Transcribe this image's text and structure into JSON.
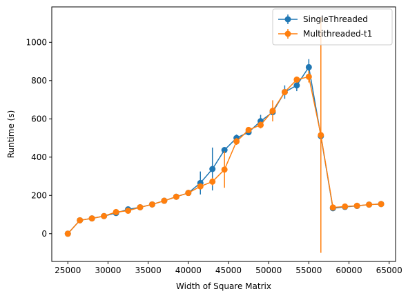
{
  "chart_data": {
    "type": "line",
    "title": "",
    "xlabel": "Width of Square Matrix",
    "ylabel": "Runtime (s)",
    "xlim": [
      23000,
      65800
    ],
    "ylim": [
      -145,
      1185
    ],
    "xticks": [
      25000,
      30000,
      35000,
      40000,
      45000,
      50000,
      55000,
      60000,
      65000
    ],
    "yticks": [
      0,
      200,
      400,
      600,
      800,
      1000
    ],
    "grid": false,
    "legend_position": "top-right",
    "series": [
      {
        "name": "SingleThreaded",
        "color": "#1f77b4",
        "points": [
          {
            "x": 25000,
            "y": 0,
            "err": 0
          },
          {
            "x": 26500,
            "y": 70,
            "err": 4
          },
          {
            "x": 28000,
            "y": 80,
            "err": 4
          },
          {
            "x": 29500,
            "y": 92,
            "err": 4
          },
          {
            "x": 31000,
            "y": 108,
            "err": 5
          },
          {
            "x": 32500,
            "y": 127,
            "err": 5
          },
          {
            "x": 34000,
            "y": 138,
            "err": 5
          },
          {
            "x": 35500,
            "y": 153,
            "err": 5
          },
          {
            "x": 37000,
            "y": 172,
            "err": 5
          },
          {
            "x": 38500,
            "y": 193,
            "err": 6
          },
          {
            "x": 40000,
            "y": 213,
            "err": 6
          },
          {
            "x": 41500,
            "y": 265,
            "err": 60
          },
          {
            "x": 43000,
            "y": 338,
            "err": 112
          },
          {
            "x": 44500,
            "y": 437,
            "err": 10
          },
          {
            "x": 46000,
            "y": 500,
            "err": 18
          },
          {
            "x": 47500,
            "y": 530,
            "err": 12
          },
          {
            "x": 49000,
            "y": 588,
            "err": 33
          },
          {
            "x": 50500,
            "y": 635,
            "err": 15
          },
          {
            "x": 52000,
            "y": 740,
            "err": 35
          },
          {
            "x": 53500,
            "y": 775,
            "err": 30
          },
          {
            "x": 55000,
            "y": 870,
            "err": 42
          },
          {
            "x": 56500,
            "y": 510,
            "err": 10
          },
          {
            "x": 58000,
            "y": 133,
            "err": 8
          },
          {
            "x": 59500,
            "y": 140,
            "err": 5
          },
          {
            "x": 61000,
            "y": 145,
            "err": 5
          },
          {
            "x": 62500,
            "y": 152,
            "err": 5
          },
          {
            "x": 64000,
            "y": 155,
            "err": 5
          }
        ]
      },
      {
        "name": "Multithreaded-t1",
        "color": "#ff7f0e",
        "points": [
          {
            "x": 25000,
            "y": 0,
            "err": 0
          },
          {
            "x": 26500,
            "y": 70,
            "err": 4
          },
          {
            "x": 28000,
            "y": 80,
            "err": 4
          },
          {
            "x": 29500,
            "y": 92,
            "err": 4
          },
          {
            "x": 31000,
            "y": 113,
            "err": 8
          },
          {
            "x": 32500,
            "y": 120,
            "err": 5
          },
          {
            "x": 34000,
            "y": 138,
            "err": 5
          },
          {
            "x": 35500,
            "y": 153,
            "err": 5
          },
          {
            "x": 37000,
            "y": 172,
            "err": 5
          },
          {
            "x": 38500,
            "y": 193,
            "err": 6
          },
          {
            "x": 40000,
            "y": 213,
            "err": 6
          },
          {
            "x": 41500,
            "y": 247,
            "err": 15
          },
          {
            "x": 43000,
            "y": 272,
            "err": 20
          },
          {
            "x": 44500,
            "y": 335,
            "err": 95
          },
          {
            "x": 46000,
            "y": 482,
            "err": 18
          },
          {
            "x": 47500,
            "y": 542,
            "err": 15
          },
          {
            "x": 49000,
            "y": 568,
            "err": 18
          },
          {
            "x": 50500,
            "y": 642,
            "err": 55
          },
          {
            "x": 52000,
            "y": 740,
            "err": 12
          },
          {
            "x": 53500,
            "y": 805,
            "err": 12
          },
          {
            "x": 55000,
            "y": 820,
            "err": 30
          },
          {
            "x": 56500,
            "y": 515,
            "err": 615
          },
          {
            "x": 58000,
            "y": 137,
            "err": 8
          },
          {
            "x": 59500,
            "y": 142,
            "err": 5
          },
          {
            "x": 61000,
            "y": 146,
            "err": 5
          },
          {
            "x": 62500,
            "y": 152,
            "err": 5
          },
          {
            "x": 64000,
            "y": 155,
            "err": 5
          }
        ]
      }
    ]
  }
}
